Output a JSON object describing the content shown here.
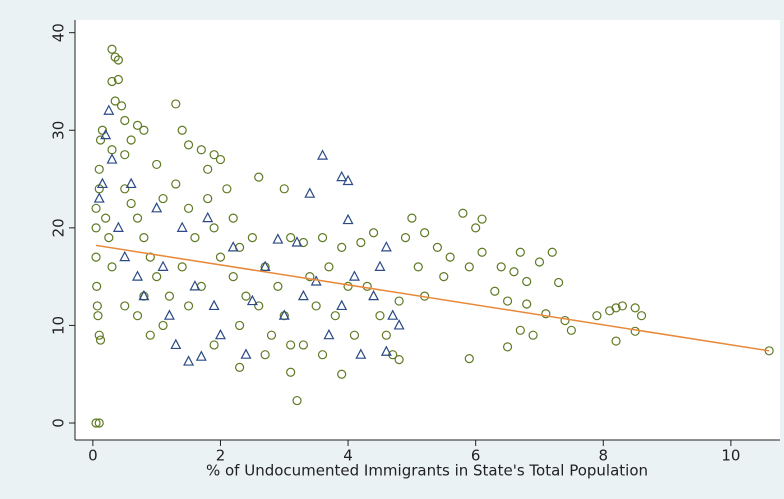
{
  "chart_data": {
    "type": "scatter",
    "x_label": "% of Undocumented Immigrants in State's Total Population",
    "xlim": [
      -0.28,
      10.77
    ],
    "ylim": [
      -1.74,
      41.3
    ],
    "xticks": [
      0,
      2,
      4,
      6,
      8,
      10
    ],
    "yticks": [
      0,
      10,
      20,
      30,
      40
    ],
    "grid": false,
    "series": [
      {
        "marker": "circle",
        "color": "#5f7a24",
        "x": [
          0.05,
          0.05,
          0.05,
          0.06,
          0.07,
          0.08,
          0.1,
          0.1,
          0.12,
          0.15,
          0.1,
          0.12,
          0.05,
          0.1,
          0.2,
          0.25,
          0.3,
          0.3,
          0.35,
          0.4,
          0.3,
          0.4,
          0.35,
          0.45,
          0.5,
          0.3,
          0.5,
          0.6,
          0.7,
          0.8,
          0.5,
          0.6,
          0.7,
          0.8,
          0.9,
          0.5,
          0.7,
          0.8,
          0.9,
          1.0,
          1.1,
          1.0,
          1.2,
          1.1,
          1.3,
          1.4,
          1.5,
          1.3,
          1.5,
          1.6,
          1.4,
          1.5,
          1.7,
          1.8,
          1.9,
          2.0,
          1.8,
          1.9,
          2.0,
          1.7,
          1.9,
          2.1,
          2.2,
          2.3,
          2.2,
          2.4,
          2.3,
          2.3,
          2.6,
          2.5,
          2.7,
          2.6,
          2.8,
          2.7,
          3.0,
          3.1,
          2.9,
          3.0,
          3.1,
          3.1,
          3.2,
          3.3,
          3.4,
          3.5,
          3.3,
          3.6,
          3.7,
          3.8,
          3.6,
          3.9,
          4.0,
          3.9,
          4.1,
          4.2,
          4.3,
          4.4,
          4.5,
          4.6,
          4.7,
          4.8,
          4.8,
          4.9,
          5.0,
          5.1,
          5.2,
          5.2,
          5.4,
          5.5,
          5.6,
          5.8,
          5.9,
          5.9,
          6.0,
          6.1,
          6.1,
          6.3,
          6.4,
          6.5,
          6.5,
          6.6,
          6.7,
          6.8,
          6.7,
          6.9,
          6.8,
          7.0,
          7.2,
          7.1,
          7.3,
          7.4,
          7.5,
          7.9,
          8.1,
          8.2,
          8.3,
          8.2,
          8.5,
          8.5,
          8.6,
          10.6
        ],
        "values": [
          22,
          20,
          17,
          14,
          12,
          11,
          24,
          26,
          29,
          30,
          9,
          8.5,
          0,
          0,
          21,
          19,
          16,
          38.3,
          37.5,
          37.2,
          35,
          35.2,
          33,
          32.5,
          31,
          28,
          27.5,
          29,
          30.5,
          30,
          24,
          22.5,
          21,
          19,
          17,
          12,
          11,
          13,
          9,
          26.5,
          23,
          15,
          13,
          10,
          32.7,
          30,
          28.5,
          24.5,
          22,
          19,
          16,
          12,
          28,
          26,
          27.5,
          27,
          23,
          20,
          17,
          14,
          8,
          24,
          21,
          18,
          15,
          13,
          10,
          5.7,
          25.2,
          19,
          16,
          12,
          9,
          7,
          24,
          19,
          14,
          11,
          8,
          5.2,
          2.3,
          18.5,
          15,
          12,
          8,
          19,
          16,
          11,
          7,
          18,
          14,
          5,
          9,
          18.5,
          14,
          19.5,
          11,
          9,
          7,
          6.5,
          12.5,
          19,
          21,
          16,
          13,
          19.5,
          18,
          15,
          17,
          21.5,
          16,
          6.6,
          20,
          20.9,
          17.5,
          13.5,
          16,
          7.8,
          12.5,
          15.5,
          17.5,
          14.5,
          9.5,
          9,
          12.2,
          16.5,
          17.5,
          11.2,
          14.4,
          10.5,
          9.5,
          11,
          11.5,
          11.8,
          12,
          8.4,
          11.8,
          9.4,
          11,
          7.4
        ]
      },
      {
        "marker": "triangle",
        "color": "#2b4a86",
        "x": [
          0.1,
          0.15,
          0.2,
          0.25,
          0.3,
          0.4,
          0.5,
          0.6,
          0.7,
          0.8,
          1.0,
          1.1,
          1.2,
          1.3,
          1.4,
          1.5,
          1.6,
          1.7,
          1.8,
          1.9,
          2.0,
          2.2,
          2.4,
          2.5,
          2.7,
          2.9,
          3.0,
          3.2,
          3.3,
          3.4,
          3.6,
          3.5,
          3.7,
          3.9,
          4.0,
          4.0,
          3.9,
          4.1,
          4.2,
          4.4,
          4.6,
          4.6,
          4.7,
          4.8,
          4.5
        ],
        "values": [
          23,
          24.5,
          29.5,
          32,
          27,
          20,
          17,
          24.5,
          15,
          13,
          22,
          16,
          11,
          8,
          20,
          6.3,
          14,
          6.8,
          21,
          12,
          9,
          18,
          7,
          12.5,
          16,
          18.8,
          11,
          18.5,
          13,
          23.5,
          27.4,
          14.5,
          9,
          25.2,
          24.8,
          20.8,
          12,
          15,
          7,
          13,
          18,
          7.3,
          11,
          10,
          16
        ]
      }
    ],
    "fit": {
      "color": "#e8893a",
      "x": [
        0.05,
        10.6
      ],
      "values": [
        18.2,
        7.4
      ]
    }
  }
}
